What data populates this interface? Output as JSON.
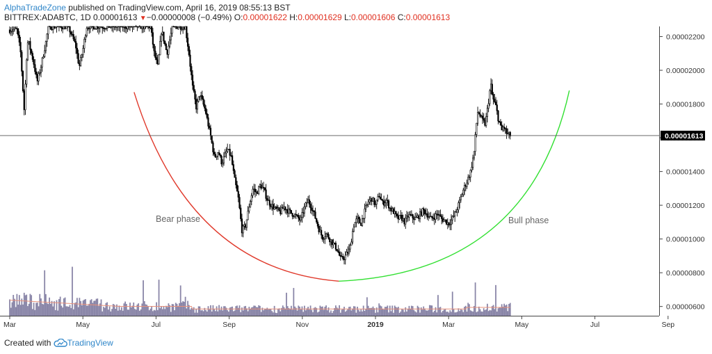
{
  "header": {
    "author": "AlphaTradeZone",
    "published_text": "published on TradingView.com, April 16, 2019 08:55:13 BST",
    "symbol": "BITTREX:ADABTC, 1D",
    "last": "0.00001613",
    "change": "−0.00000008 (−0.49%)",
    "o_label": "O:",
    "o_val": "0.00001622",
    "h_label": "H:",
    "h_val": "0.00001629",
    "l_label": "L:",
    "l_val": "0.00001606",
    "c_label": "C:",
    "c_val": "0.00001613"
  },
  "footer": {
    "created_with": "Created with",
    "brand": "TradingView"
  },
  "colors": {
    "bear_arc": "#e0392b",
    "bull_arc": "#33e033",
    "candle": "#000000",
    "volume": "#8a86a8",
    "volume_ma": "#e8907a"
  },
  "chart_data": {
    "type": "candlestick",
    "price_axis": {
      "ticks": [
        "0.00002200",
        "0.00002000",
        "0.00001800",
        "0.00001600",
        "0.00001400",
        "0.00001200",
        "0.00001000",
        "0.00000800",
        "0.00000600"
      ],
      "tick_values": [
        22,
        20,
        18,
        16,
        14,
        12,
        10,
        8,
        6
      ],
      "unit_scale": 1e-06,
      "range": [
        5.45,
        22.6
      ],
      "current_price_label": "0.00001613",
      "current_price_value": 16.13
    },
    "time_axis": {
      "labels": [
        "Mar",
        "May",
        "Jul",
        "Sep",
        "Nov",
        "2019",
        "Mar",
        "May",
        "Jul",
        "Sep"
      ],
      "bold_label": "2019",
      "label_months": [
        0,
        2,
        4,
        6,
        8,
        10,
        12,
        14,
        16,
        18
      ],
      "range_months": [
        0,
        19
      ]
    },
    "close_path": [
      [
        0.2,
        22.4
      ],
      [
        0.3,
        21.0
      ],
      [
        0.4,
        17.5
      ],
      [
        0.45,
        20.5
      ],
      [
        0.5,
        21.8
      ],
      [
        0.65,
        20.5
      ],
      [
        0.75,
        19.3
      ],
      [
        0.85,
        20.2
      ],
      [
        1.0,
        21.8
      ],
      [
        1.05,
        22.6
      ],
      [
        1.6,
        22.6
      ],
      [
        1.8,
        21.5
      ],
      [
        1.9,
        20.2
      ],
      [
        2.0,
        21.2
      ],
      [
        2.1,
        22.6
      ],
      [
        3.85,
        22.6
      ],
      [
        3.95,
        21.0
      ],
      [
        4.05,
        20.2
      ],
      [
        4.15,
        22.4
      ],
      [
        4.3,
        21.0
      ],
      [
        4.45,
        22.6
      ],
      [
        4.8,
        22.6
      ],
      [
        4.9,
        21.0
      ],
      [
        5.0,
        19.0
      ],
      [
        5.1,
        17.8
      ],
      [
        5.2,
        18.6
      ],
      [
        5.35,
        17.6
      ],
      [
        5.5,
        16.0
      ],
      [
        5.6,
        14.8
      ],
      [
        5.7,
        15.2
      ],
      [
        5.8,
        14.5
      ],
      [
        5.95,
        15.3
      ],
      [
        6.05,
        14.9
      ],
      [
        6.15,
        13.5
      ],
      [
        6.25,
        12.4
      ],
      [
        6.35,
        10.5
      ],
      [
        6.45,
        10.8
      ],
      [
        6.55,
        12.0
      ],
      [
        6.65,
        13.0
      ],
      [
        6.75,
        12.7
      ],
      [
        6.85,
        13.2
      ],
      [
        6.95,
        12.9
      ],
      [
        7.05,
        12.3
      ],
      [
        7.15,
        12.0
      ],
      [
        7.25,
        11.8
      ],
      [
        7.4,
        11.6
      ],
      [
        7.5,
        11.9
      ],
      [
        7.65,
        11.6
      ],
      [
        7.8,
        11.4
      ],
      [
        7.95,
        11.1
      ],
      [
        8.05,
        11.8
      ],
      [
        8.15,
        12.3
      ],
      [
        8.25,
        11.9
      ],
      [
        8.35,
        11.3
      ],
      [
        8.45,
        10.6
      ],
      [
        8.55,
        10.1
      ],
      [
        8.65,
        10.3
      ],
      [
        8.75,
        10.0
      ],
      [
        8.85,
        9.7
      ],
      [
        8.95,
        9.4
      ],
      [
        9.05,
        8.8
      ],
      [
        9.15,
        8.9
      ],
      [
        9.3,
        9.4
      ],
      [
        9.4,
        10.8
      ],
      [
        9.5,
        11.2
      ],
      [
        9.6,
        10.9
      ],
      [
        9.7,
        11.6
      ],
      [
        9.8,
        12.2
      ],
      [
        9.9,
        12.4
      ],
      [
        10.0,
        12.0
      ],
      [
        10.1,
        12.6
      ],
      [
        10.2,
        12.1
      ],
      [
        10.3,
        12.3
      ],
      [
        10.4,
        11.8
      ],
      [
        10.5,
        11.6
      ],
      [
        10.6,
        11.2
      ],
      [
        10.7,
        11.3
      ],
      [
        10.8,
        11.0
      ],
      [
        10.9,
        11.4
      ],
      [
        11.0,
        11.3
      ],
      [
        11.1,
        11.2
      ],
      [
        11.2,
        11.4
      ],
      [
        11.3,
        11.7
      ],
      [
        11.4,
        11.5
      ],
      [
        11.5,
        11.2
      ],
      [
        11.6,
        11.3
      ],
      [
        11.7,
        11.5
      ],
      [
        11.8,
        11.2
      ],
      [
        11.9,
        11.1
      ],
      [
        12.0,
        10.9
      ],
      [
        12.1,
        11.2
      ],
      [
        12.2,
        11.6
      ],
      [
        12.3,
        12.2
      ],
      [
        12.4,
        12.9
      ],
      [
        12.5,
        13.4
      ],
      [
        12.6,
        14.0
      ],
      [
        12.7,
        15.2
      ],
      [
        12.75,
        16.6
      ],
      [
        12.8,
        17.6
      ],
      [
        12.9,
        17.1
      ],
      [
        13.0,
        16.8
      ],
      [
        13.05,
        17.5
      ],
      [
        13.1,
        18.3
      ],
      [
        13.15,
        19.2
      ],
      [
        13.2,
        18.4
      ],
      [
        13.3,
        17.8
      ],
      [
        13.35,
        17.2
      ],
      [
        13.45,
        16.4
      ],
      [
        13.5,
        16.7
      ],
      [
        13.6,
        16.2
      ],
      [
        13.7,
        16.13
      ]
    ],
    "annotations": [
      {
        "text": "Bear phase"
      },
      {
        "text": "Bull phase"
      }
    ]
  }
}
